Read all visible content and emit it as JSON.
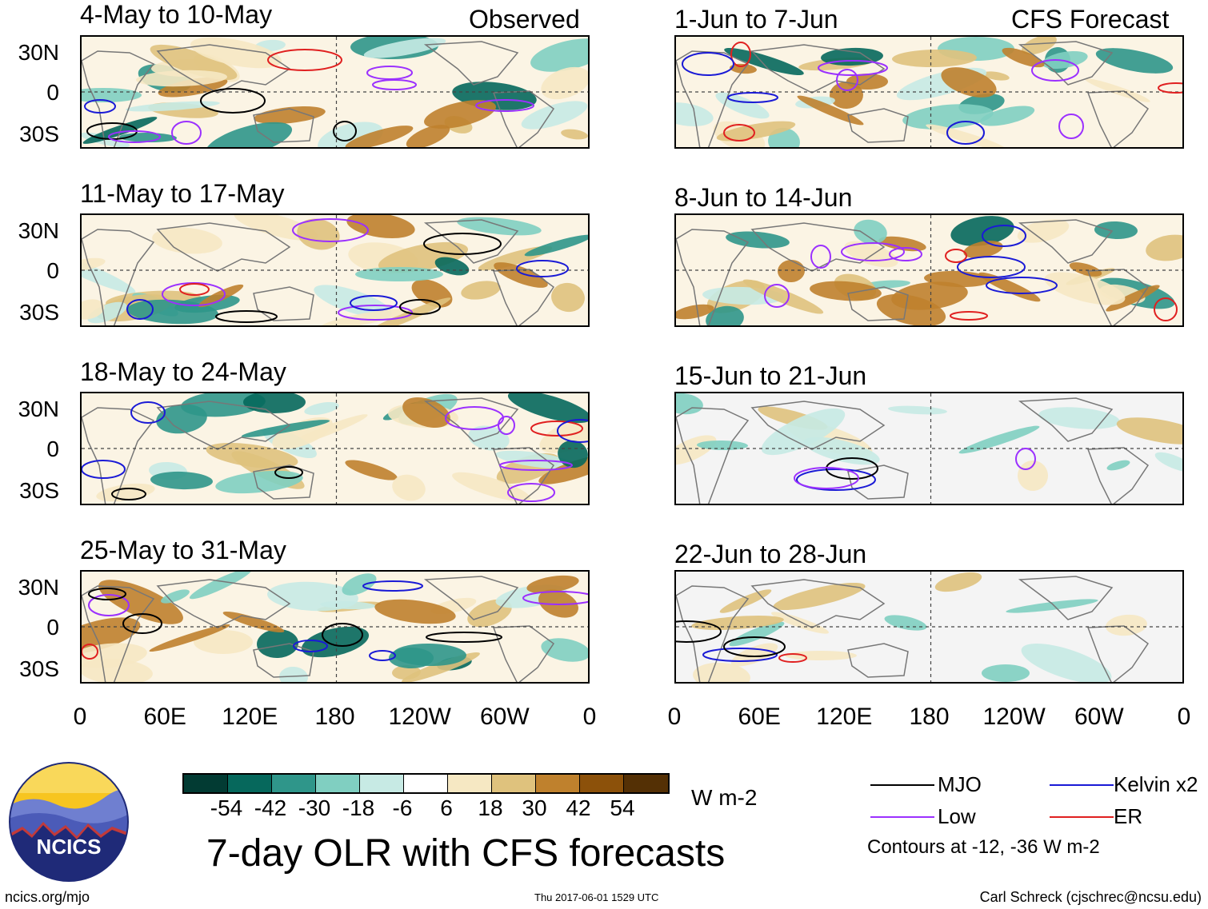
{
  "panel_corner_labels": {
    "left": "Observed",
    "right": "CFS Forecast"
  },
  "panels": [
    {
      "title": "4-May to 10-May"
    },
    {
      "title": "11-May to 17-May"
    },
    {
      "title": "18-May to 24-May"
    },
    {
      "title": "25-May to 31-May"
    },
    {
      "title": "1-Jun to 7-Jun"
    },
    {
      "title": "8-Jun to 14-Jun"
    },
    {
      "title": "15-Jun to 21-Jun"
    },
    {
      "title": "22-Jun to 28-Jun"
    }
  ],
  "lat_labels": [
    "30N",
    "0",
    "30S"
  ],
  "lon_labels": [
    "0",
    "60E",
    "120E",
    "180",
    "120W",
    "60W",
    "0"
  ],
  "colorbar": {
    "colors": [
      "#023b33",
      "#06685c",
      "#2f968a",
      "#80cfc1",
      "#c7eae4",
      "#ffffff",
      "#f6e8c3",
      "#dfc27d",
      "#bf812d",
      "#8c510a",
      "#543005"
    ],
    "labels": [
      "-54",
      "-42",
      "-30",
      "-18",
      "-6",
      "6",
      "18",
      "30",
      "42",
      "54"
    ],
    "units": "W m-2"
  },
  "legend": {
    "items": [
      {
        "label": "MJO",
        "color": "#000000"
      },
      {
        "label": "Kelvin x2",
        "color": "#1a1ad6"
      },
      {
        "label": "Low",
        "color": "#9b30ff"
      },
      {
        "label": "ER",
        "color": "#e02020"
      }
    ],
    "note": "Contours at -12, -36 W m-2"
  },
  "logo": {
    "text": "NCICS"
  },
  "title": "7-day OLR with CFS forecasts",
  "footer": {
    "url": "ncics.org/mjo",
    "timestamp": "Thu 2017-06-01 1529 UTC",
    "author": "Carl Schreck (cjschrec@ncsu.edu)"
  }
}
